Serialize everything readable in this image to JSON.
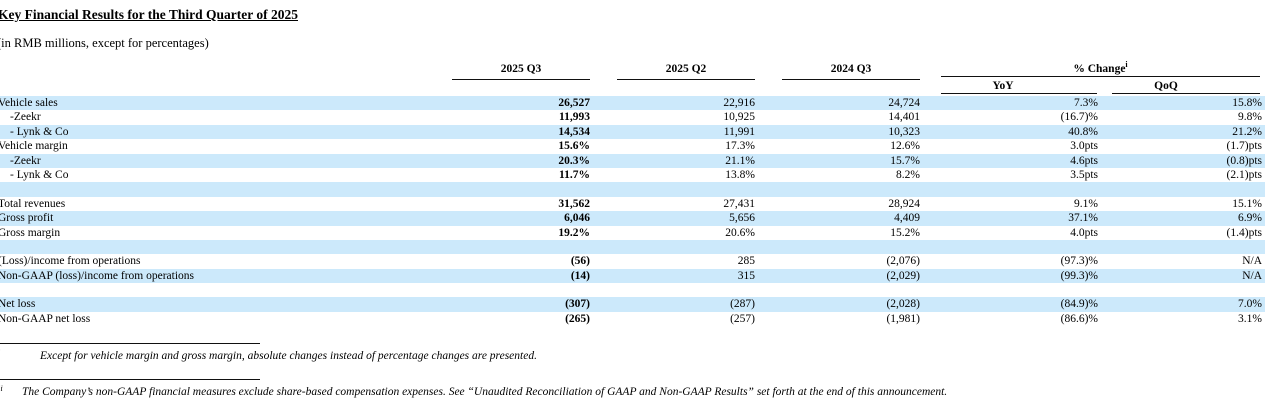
{
  "document": {
    "title": "Key Financial Results for the Third Quarter of 2025",
    "unit_note": "(in RMB millions, except for percentages)"
  },
  "colors": {
    "row_highlight": "#cce9fb",
    "text": "#000000"
  },
  "table": {
    "column_headers": [
      "2025 Q3",
      "2025 Q2",
      "2024 Q3"
    ],
    "change": {
      "label": "% Change",
      "footnote_mark": "i",
      "yoy_label": "YoY",
      "qoq_label": "QoQ"
    },
    "rows": [
      {
        "label": "Vehicle sales",
        "indent": false,
        "v1": "26,527",
        "v2": "22,916",
        "v3": "24,724",
        "yoy": "7.3%",
        "qoq": "15.8%"
      },
      {
        "label": "-Zeekr",
        "indent": true,
        "v1": "11,993",
        "v2": "10,925",
        "v3": "14,401",
        "yoy": "(16.7)%",
        "qoq": "9.8%"
      },
      {
        "label": "- Lynk & Co",
        "indent": true,
        "v1": "14,534",
        "v2": "11,991",
        "v3": "10,323",
        "yoy": "40.8%",
        "qoq": "21.2%"
      },
      {
        "label": "Vehicle margin",
        "indent": false,
        "v1": "15.6%",
        "v2": "17.3%",
        "v3": "12.6%",
        "yoy": "3.0pts",
        "qoq": "(1.7)pts"
      },
      {
        "label": "-Zeekr",
        "indent": true,
        "v1": "20.3%",
        "v2": "21.1%",
        "v3": "15.7%",
        "yoy": "4.6pts",
        "qoq": "(0.8)pts"
      },
      {
        "label": "- Lynk & Co",
        "indent": true,
        "v1": "11.7%",
        "v2": "13.8%",
        "v3": "8.2%",
        "yoy": "3.5pts",
        "qoq": "(2.1)pts"
      },
      {
        "blank": true
      },
      {
        "label": "Total revenues",
        "indent": false,
        "v1": "31,562",
        "v2": "27,431",
        "v3": "28,924",
        "yoy": "9.1%",
        "qoq": "15.1%"
      },
      {
        "label": "Gross profit",
        "indent": false,
        "v1": "6,046",
        "v2": "5,656",
        "v3": "4,409",
        "yoy": "37.1%",
        "qoq": "6.9%"
      },
      {
        "label": "Gross margin",
        "indent": false,
        "v1": "19.2%",
        "v2": "20.6%",
        "v3": "15.2%",
        "yoy": "4.0pts",
        "qoq": "(1.4)pts"
      },
      {
        "blank": true
      },
      {
        "label": "(Loss)/income from operations",
        "indent": false,
        "v1": "(56)",
        "v2": "285",
        "v3": "(2,076)",
        "yoy": "(97.3)%",
        "qoq": "N/A"
      },
      {
        "label": "Non-GAAP (loss)/income from operations",
        "indent": false,
        "v1": "(14)",
        "v2": "315",
        "v3": "(2,029)",
        "yoy": "(99.3)%",
        "qoq": "N/A"
      },
      {
        "blank": true
      },
      {
        "label": "Net loss",
        "indent": false,
        "v1": "(307)",
        "v2": "(287)",
        "v3": "(2,028)",
        "yoy": "(84.9)%",
        "qoq": "7.0%"
      },
      {
        "label": "Non-GAAP net loss",
        "indent": false,
        "v1": "(265)",
        "v2": "(257)",
        "v3": "(1,981)",
        "yoy": "(86.6)%",
        "qoq": "3.1%"
      }
    ]
  },
  "footnotes": [
    {
      "mark": "i",
      "text": "Except for vehicle margin and gross margin, absolute changes instead of percentage changes are presented."
    },
    {
      "mark": "ii",
      "text": "The Company’s non-GAAP financial measures exclude share-based compensation expenses. See “Unaudited Reconciliation of GAAP and Non-GAAP Results” set forth at the end of this announcement."
    }
  ]
}
